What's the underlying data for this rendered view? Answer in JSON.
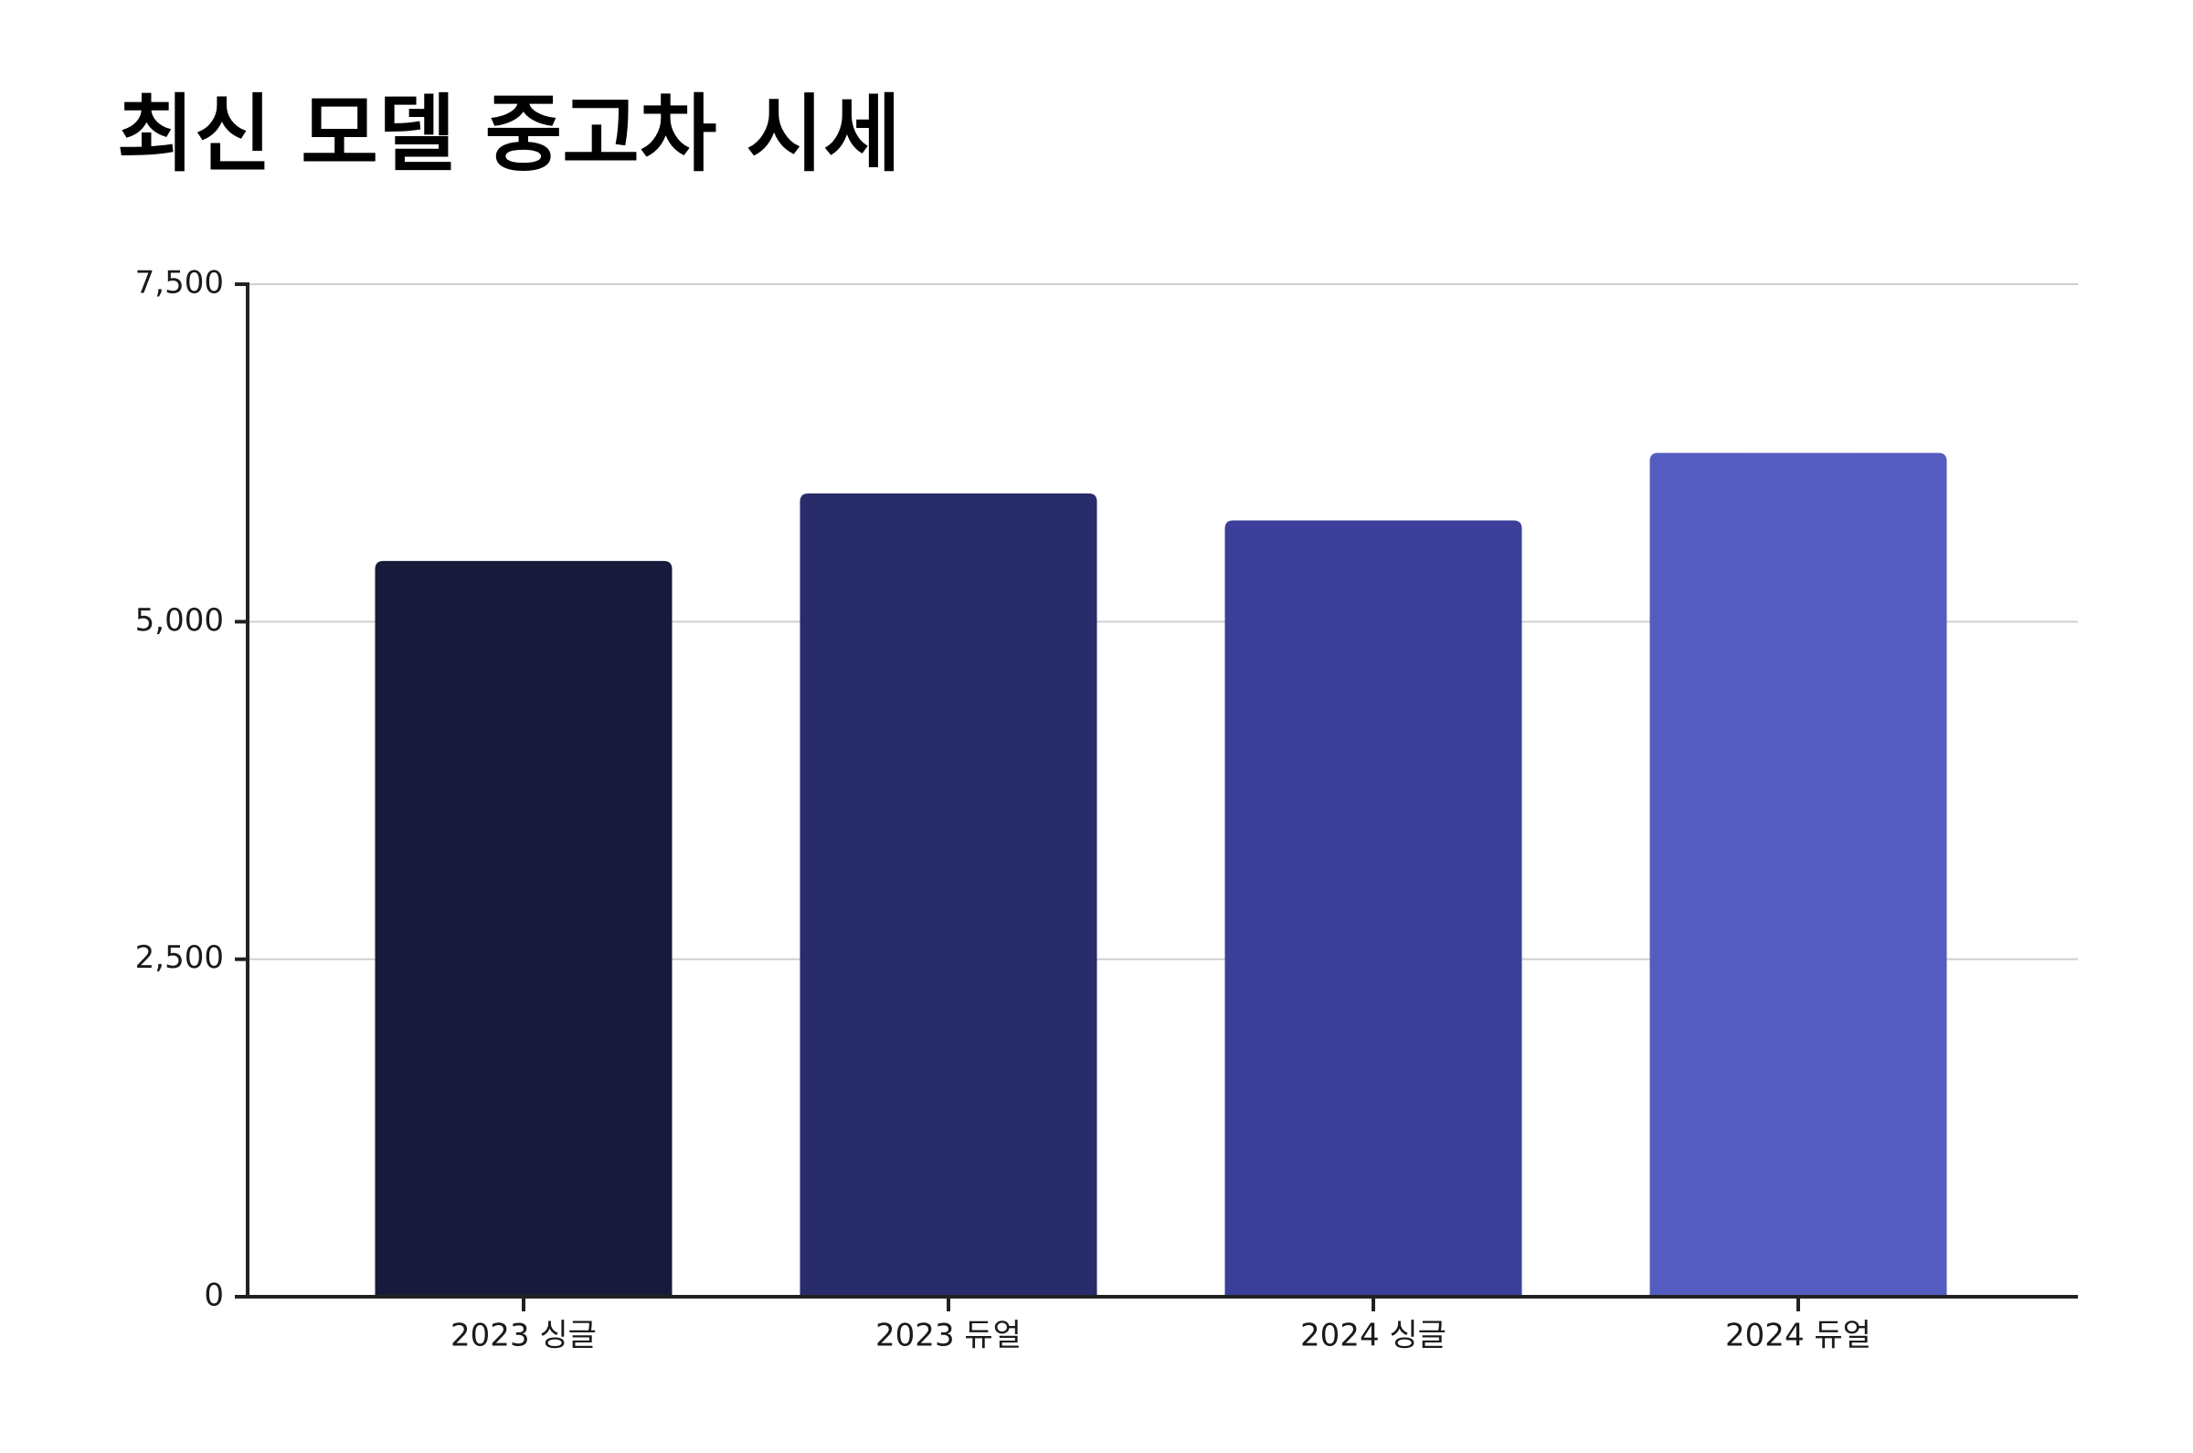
{
  "chart_data": {
    "type": "bar",
    "title": "최신 모델 중고차 시세",
    "categories": [
      "2023 싱글",
      "2023 듀얼",
      "2024 싱글",
      "2024 듀얼"
    ],
    "values": [
      5450,
      5950,
      5750,
      6250
    ],
    "colors": [
      "#171a3a",
      "#282c6a",
      "#3b3f9a",
      "#545dbf"
    ],
    "ylim": [
      0,
      7500
    ],
    "yticks": [
      0,
      {
        "value": 2500,
        "label": "2,500"
      },
      {
        "value": 5000,
        "label": "5,000"
      },
      {
        "value": 7500,
        "label": "7,500"
      }
    ],
    "grid": true
  }
}
